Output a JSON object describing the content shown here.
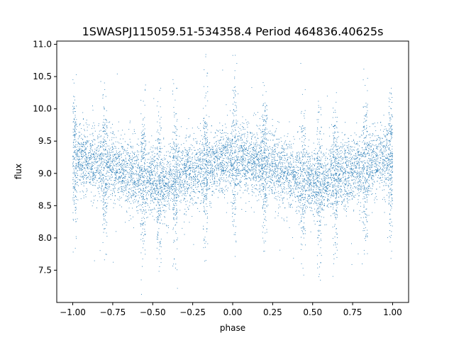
{
  "chart_data": {
    "type": "scatter",
    "title": "1SWASPJ115059.51-534358.4 Period 464836.40625s",
    "xlabel": "phase",
    "ylabel": "flux",
    "xlim": [
      -1.1,
      1.1
    ],
    "ylim": [
      7.0,
      11.05
    ],
    "grid": false,
    "legend": "none",
    "x_ticks": [
      -1.0,
      -0.75,
      -0.5,
      -0.25,
      0.0,
      0.25,
      0.5,
      0.75,
      1.0
    ],
    "x_tick_labels": [
      "−1.00",
      "−0.75",
      "−0.50",
      "−0.25",
      "0.00",
      "0.25",
      "0.50",
      "0.75",
      "1.00"
    ],
    "y_ticks": [
      7.5,
      8.0,
      8.5,
      9.0,
      9.5,
      10.0,
      10.5,
      11.0
    ],
    "y_tick_labels": [
      "7.5",
      "8.0",
      "8.5",
      "9.0",
      "9.5",
      "10.0",
      "10.5",
      "11.0"
    ],
    "point_color": "#1f77b4",
    "phase_range": [
      -1.0,
      1.0
    ],
    "mean_flux_profile": {
      "x": [
        -1.0,
        -0.8,
        -0.6,
        -0.45,
        -0.3,
        -0.15,
        0.0,
        0.2,
        0.4,
        0.55,
        0.7,
        0.85,
        1.0
      ],
      "y": [
        9.25,
        9.15,
        8.95,
        8.82,
        9.0,
        9.12,
        9.25,
        9.15,
        8.95,
        8.82,
        9.0,
        9.12,
        9.25
      ]
    },
    "spread_columns": [
      -0.99,
      -0.8,
      -0.56,
      -0.46,
      -0.36,
      -0.17,
      0.01,
      0.2,
      0.44,
      0.54,
      0.64,
      0.83,
      0.99
    ]
  }
}
